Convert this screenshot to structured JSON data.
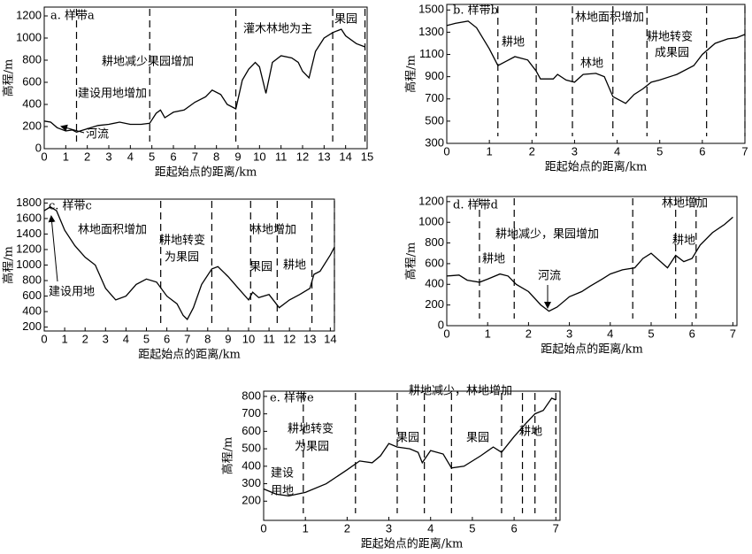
{
  "chart_data": [
    {
      "type": "line",
      "title": "a. 样带a",
      "xlabel": "距起始点的距离/km",
      "ylabel": "高程/m",
      "color": "#000000",
      "x": [
        0,
        0.3,
        0.6,
        1,
        1.3,
        1.5,
        2,
        2.5,
        3,
        3.5,
        4,
        4.5,
        4.9,
        5.2,
        5.4,
        5.6,
        6,
        6.5,
        7,
        7.5,
        7.8,
        8.2,
        8.5,
        8.9,
        9.2,
        9.5,
        9.8,
        10,
        10.3,
        10.6,
        11,
        11.5,
        11.8,
        12,
        12.3,
        12.6,
        13,
        13.4,
        13.8,
        14,
        14.5,
        14.9
      ],
      "values": [
        250,
        240,
        190,
        160,
        170,
        150,
        180,
        210,
        220,
        240,
        220,
        220,
        230,
        320,
        350,
        280,
        330,
        350,
        420,
        470,
        530,
        490,
        400,
        360,
        620,
        720,
        780,
        740,
        500,
        780,
        840,
        820,
        780,
        700,
        640,
        880,
        1000,
        1050,
        1080,
        1020,
        950,
        920
      ],
      "boundaries": [
        1.5,
        4.9,
        8.9,
        13.4,
        14.9
      ],
      "annotations": [
        "建设用地增加",
        "耕地减少果园增加",
        "灌木林地为主",
        "果园",
        "河流"
      ],
      "xlim": [
        0,
        15
      ],
      "ylim": [
        0,
        1280
      ],
      "xticks": [
        0,
        1,
        2,
        3,
        4,
        5,
        6,
        7,
        8,
        9,
        10,
        11,
        12,
        13,
        14,
        15
      ],
      "yticks": [
        0,
        200,
        400,
        600,
        800,
        1000,
        1200
      ]
    },
    {
      "type": "line",
      "title": "b. 样带b",
      "xlabel": "距起始点的距离/km",
      "ylabel": "高程/m",
      "color": "#000000",
      "x": [
        0,
        0.2,
        0.5,
        0.7,
        1,
        1.2,
        1.4,
        1.6,
        1.9,
        2.1,
        2.2,
        2.5,
        2.6,
        2.8,
        3,
        3.2,
        3.5,
        3.7,
        3.9,
        4.2,
        4.4,
        4.6,
        4.8,
        5,
        5.4,
        5.8,
        6,
        6.3,
        6.6,
        6.8,
        7
      ],
      "values": [
        1360,
        1380,
        1400,
        1340,
        1150,
        1000,
        1040,
        1080,
        1050,
        950,
        880,
        880,
        920,
        870,
        850,
        920,
        930,
        900,
        720,
        660,
        740,
        790,
        850,
        870,
        920,
        1000,
        1100,
        1200,
        1240,
        1250,
        1280
      ],
      "boundaries": [
        1.2,
        2.1,
        2.95,
        3.9,
        4.7,
        6.1,
        7
      ],
      "annotations": [
        "耕地",
        "林地",
        "林地面积增加",
        "耕地转变",
        "成果园"
      ],
      "xlim": [
        0,
        7
      ],
      "ylim": [
        300,
        1550
      ],
      "xticks": [
        0,
        1,
        2,
        3,
        4,
        5,
        6,
        7
      ],
      "yticks": [
        300,
        500,
        700,
        900,
        1100,
        1300,
        1500
      ]
    },
    {
      "type": "line",
      "title": "c. 样带c",
      "xlabel": "距起始点的距离/km",
      "ylabel": "高程/m",
      "color": "#000000",
      "x": [
        0,
        0.3,
        0.6,
        1,
        1.5,
        2,
        2.5,
        3,
        3.5,
        4,
        4.5,
        5,
        5.5,
        6,
        6.5,
        6.8,
        7,
        7.3,
        7.7,
        8.2,
        8.5,
        9,
        9.5,
        10,
        10.2,
        10.5,
        11,
        11.5,
        12,
        12.5,
        13,
        13.2,
        13.5,
        14,
        14.2
      ],
      "values": [
        1700,
        1750,
        1700,
        1450,
        1250,
        1100,
        1000,
        700,
        550,
        600,
        750,
        820,
        780,
        600,
        500,
        350,
        300,
        450,
        750,
        950,
        980,
        850,
        700,
        550,
        650,
        580,
        620,
        450,
        550,
        620,
        700,
        880,
        920,
        1130,
        1230
      ],
      "boundaries": [
        5.7,
        8.2,
        10.1,
        11.4,
        13.1,
        14.2
      ],
      "annotations": [
        "林地面积增加",
        "耕地转变",
        "为果园",
        "林地增加",
        "果园",
        "耕地",
        "建设用地"
      ],
      "xlim": [
        0,
        14.2
      ],
      "ylim": [
        150,
        1850
      ],
      "xticks": [
        0,
        1,
        2,
        3,
        4,
        5,
        6,
        7,
        8,
        9,
        10,
        11,
        12,
        13,
        14
      ],
      "yticks": [
        200,
        400,
        600,
        800,
        1000,
        1200,
        1400,
        1600,
        1800
      ]
    },
    {
      "type": "line",
      "title": "d. 样带d",
      "xlabel": "距起始点的距离/km",
      "ylabel": "高程/m",
      "color": "#000000",
      "x": [
        0,
        0.3,
        0.5,
        0.8,
        1,
        1.3,
        1.5,
        1.7,
        2,
        2.3,
        2.5,
        2.7,
        3,
        3.3,
        3.5,
        3.8,
        4,
        4.3,
        4.6,
        4.8,
        5,
        5.2,
        5.4,
        5.6,
        5.8,
        6,
        6.2,
        6.5,
        6.8,
        7
      ],
      "values": [
        480,
        490,
        440,
        420,
        450,
        500,
        480,
        400,
        330,
        200,
        140,
        180,
        280,
        330,
        380,
        450,
        500,
        540,
        560,
        650,
        700,
        630,
        560,
        680,
        620,
        650,
        780,
        900,
        980,
        1050
      ],
      "boundaries": [
        0.8,
        1.65,
        4.55,
        5.6,
        6.1
      ],
      "annotations": [
        "耕地",
        "耕地减少，果园增加",
        "河流",
        "耕地",
        "林地增加"
      ],
      "xlim": [
        0,
        7.1
      ],
      "ylim": [
        0,
        1250
      ],
      "xticks": [
        0,
        1,
        2,
        3,
        4,
        5,
        6,
        7
      ],
      "yticks": [
        0,
        200,
        400,
        600,
        800,
        1000,
        1200
      ]
    },
    {
      "type": "line",
      "title": "e. 样带e",
      "xlabel": "距起始点的距离/km",
      "ylabel": "高程/m",
      "color": "#000000",
      "x": [
        0,
        0.3,
        0.6,
        1,
        1.5,
        2,
        2.3,
        2.6,
        2.8,
        3,
        3.2,
        3.5,
        3.7,
        3.8,
        4,
        4.3,
        4.5,
        4.8,
        5.2,
        5.5,
        5.7,
        6,
        6.3,
        6.5,
        6.7,
        6.9,
        7
      ],
      "values": [
        270,
        240,
        230,
        250,
        300,
        380,
        430,
        420,
        460,
        530,
        510,
        500,
        480,
        420,
        490,
        470,
        390,
        400,
        460,
        510,
        480,
        570,
        650,
        700,
        720,
        790,
        780
      ],
      "boundaries": [
        0.95,
        2.2,
        3.2,
        3.85,
        4.5,
        5.7,
        6.2,
        6.5,
        7
      ],
      "annotations": [
        "建设",
        "用地",
        "耕地转变",
        "为果园",
        "果园",
        "果园",
        "耕地",
        "耕地减少，林地增加"
      ],
      "xlim": [
        0,
        7.1
      ],
      "ylim": [
        90,
        830
      ],
      "xticks": [
        0,
        1,
        2,
        3,
        4,
        5,
        6,
        7
      ],
      "yticks": [
        200,
        300,
        400,
        500,
        600,
        700,
        800
      ]
    }
  ]
}
